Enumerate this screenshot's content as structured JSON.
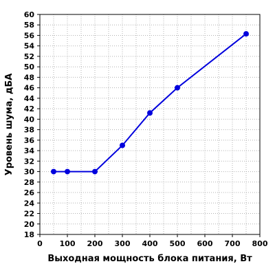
{
  "chart_data": {
    "type": "line",
    "title": "",
    "xlabel": "Выходная мощность блока питания, Вт",
    "ylabel": "Уровень шума, дБА",
    "xlim": [
      0,
      800
    ],
    "ylim": [
      18,
      60
    ],
    "x_ticks": [
      0,
      100,
      200,
      300,
      400,
      500,
      600,
      700,
      800
    ],
    "y_ticks": [
      18,
      20,
      22,
      24,
      26,
      28,
      30,
      32,
      34,
      36,
      38,
      40,
      42,
      44,
      46,
      48,
      50,
      52,
      54,
      56,
      58,
      60
    ],
    "x_minor_step": 50,
    "grid": "dotted, major and minor",
    "legend": "none",
    "series": [
      {
        "x": [
          50,
          100,
          200,
          300,
          400,
          500,
          750
        ],
        "y": [
          30,
          30,
          30,
          35,
          41.2,
          46,
          56.3
        ],
        "color": "#0000dd"
      }
    ]
  }
}
